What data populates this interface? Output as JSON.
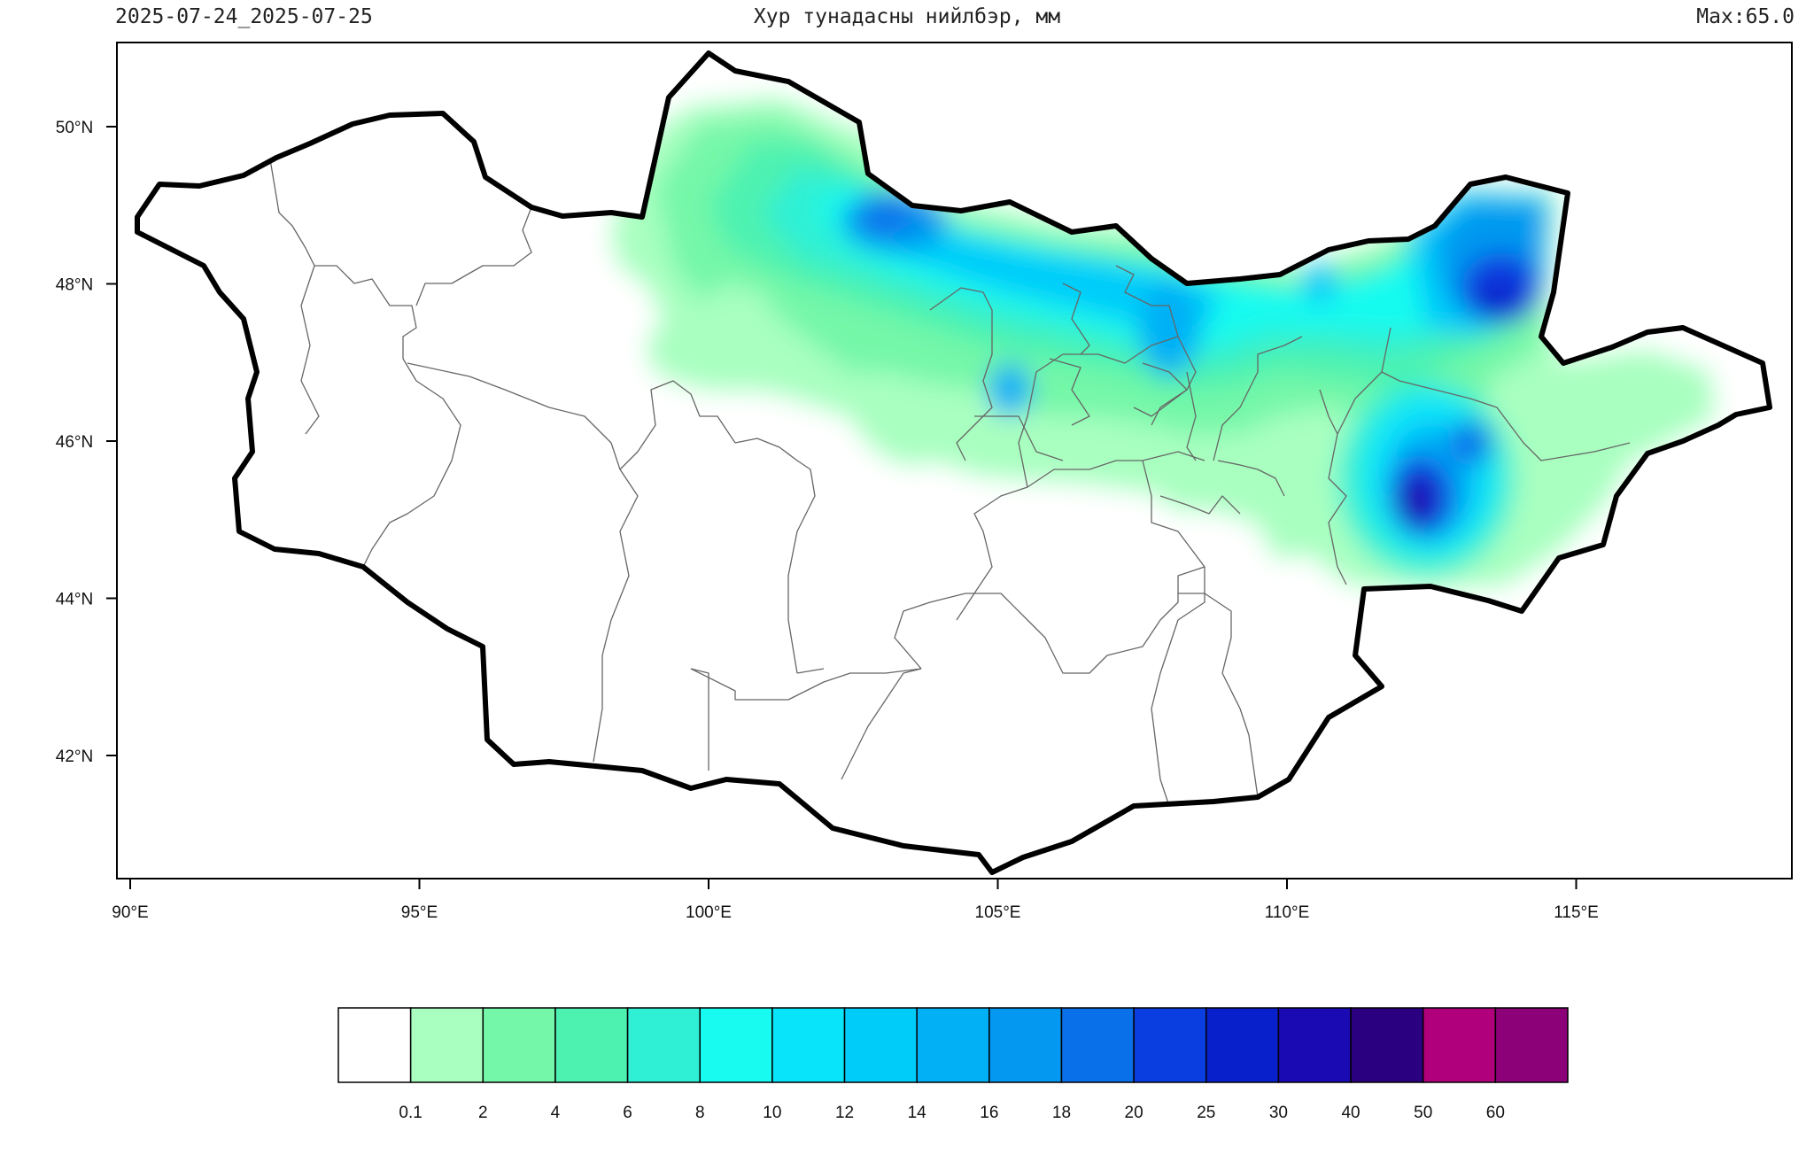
{
  "header": {
    "date_range": "2025-07-24_2025-07-25",
    "title": "Хур тунадасны нийлбэр, мм",
    "max_text": "Max:65.0"
  },
  "axes": {
    "lat_labels": [
      "50°N",
      "48°N",
      "46°N",
      "44°N",
      "42°N"
    ],
    "lat_values": [
      50,
      48,
      46,
      44,
      42
    ],
    "lon_labels": [
      "90°E",
      "95°E",
      "100°E",
      "105°E",
      "110°E",
      "115°E"
    ],
    "lon_values": [
      90,
      95,
      100,
      105,
      110,
      115
    ]
  },
  "legend": {
    "thresholds": [
      "0.1",
      "2",
      "4",
      "6",
      "8",
      "10",
      "12",
      "14",
      "16",
      "18",
      "20",
      "25",
      "30",
      "40",
      "50",
      "60"
    ],
    "colors": [
      "#ffffff",
      "#a8ffc0",
      "#74f7a8",
      "#4ef2b0",
      "#2ff0d4",
      "#18fbf0",
      "#08e4fa",
      "#00ccfa",
      "#02b0f6",
      "#0498f0",
      "#0a70ea",
      "#0a3ee0",
      "#0820cc",
      "#1a0ab4",
      "#2a0080",
      "#b0007c",
      "#8c0078"
    ]
  },
  "map_data": {
    "region": "Mongolia",
    "variable": "24-hour accumulated precipitation (mm)",
    "max_value": 65.0,
    "maxima": [
      {
        "lat": 45.2,
        "lon": 112.3,
        "value": 40
      },
      {
        "lat": 47.8,
        "lon": 113.9,
        "value": 30
      },
      {
        "lat": 48.8,
        "lon": 103.1,
        "value": 20
      },
      {
        "lat": 46.7,
        "lon": 105.2,
        "value": 16
      }
    ]
  }
}
